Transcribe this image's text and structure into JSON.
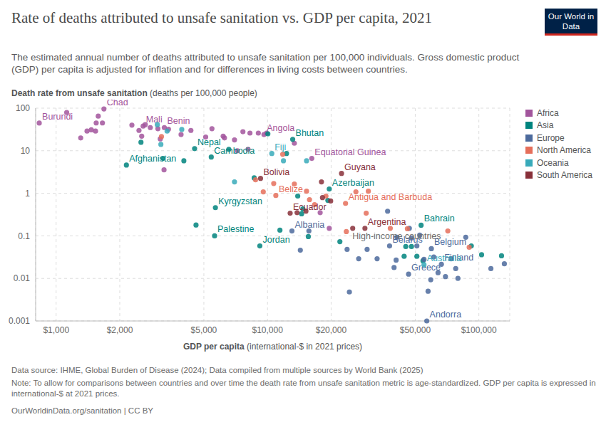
{
  "chart_data": {
    "type": "scatter",
    "title": "Rate of deaths attributed to unsafe sanitation vs. GDP per capita, 2021",
    "subtitle": "The estimated annual number of deaths attributed to unsafe sanitation per 100,000 individuals. Gross domestic product (GDP) per capita is adjusted for inflation and for differences in living costs between countries.",
    "x_label": "GDP per capita (international-$ in 2021 prices)",
    "y_label": "Death rate from unsafe sanitation (deaths per 100,000 people)",
    "log": true,
    "grid": true,
    "legend": "right",
    "xlim": [
      800,
      140000
    ],
    "xticks": [
      {
        "value": 1000,
        "label": "$1,000"
      },
      {
        "value": 2000,
        "label": "$2,000"
      },
      {
        "value": 5000,
        "label": "$5,000"
      },
      {
        "value": 10000,
        "label": "$10,000"
      },
      {
        "value": 20000,
        "label": "$20,000"
      },
      {
        "value": 50000,
        "label": "$50,000"
      },
      {
        "value": 100000,
        "label": "$100,000"
      }
    ],
    "ylim": [
      0.001,
      100
    ],
    "yticks": [
      0.001,
      0.01,
      0.1,
      1,
      10,
      100
    ],
    "series": [
      {
        "name": "Africa",
        "color": "#a2559c",
        "x": [
          832,
          1683,
          2580,
          3250,
          9620,
          16200,
          1122,
          1400,
          1307,
          1467,
          1582,
          1547,
          1656,
          1536,
          2283,
          2466,
          2640,
          2790,
          2540,
          3030,
          3400,
          3110,
          3900,
          4340,
          5100,
          5460,
          6170,
          6260,
          6980,
          7650,
          8260,
          9050,
          9900,
          3240,
          13400,
          7200,
          8090,
          17750,
          19600
        ],
        "values": [
          44.7,
          96,
          38,
          35,
          24,
          6.6,
          79,
          29,
          20,
          31,
          65,
          45,
          45,
          29,
          40,
          30,
          41,
          35,
          22,
          33,
          32,
          19,
          24,
          30,
          21,
          33,
          22,
          20,
          18,
          28,
          26,
          26,
          26,
          3.55,
          15,
          10,
          10.8,
          0.35,
          0.15
        ],
        "labels": [
          "Burundi",
          "Chad",
          "Mali",
          "Benin",
          "Angola",
          "Equatorial Guinea",
          null,
          null,
          null,
          null,
          null,
          null,
          null,
          null,
          null,
          null,
          null,
          null,
          null,
          null,
          null,
          null,
          null,
          null,
          null,
          null,
          null,
          null,
          null,
          null,
          null,
          null,
          null,
          null,
          null,
          null,
          null,
          null,
          null
        ]
      },
      {
        "name": "Asia",
        "color": "#00847e",
        "x": [
          2150,
          4520,
          5420,
          13160,
          5670,
          5620,
          9200,
          19600,
          53300,
          2520,
          3200,
          4020,
          8650,
          10040,
          6560,
          12300,
          4590,
          11450,
          13900,
          19300,
          15600,
          22000,
          45100,
          48000,
          44300,
          50900,
          54400,
          92100,
          103000,
          128000,
          14500,
          14700
        ],
        "values": [
          4.6,
          11.2,
          7.1,
          18.5,
          0.46,
          0.1,
          0.058,
          1.26,
          0.178,
          15.8,
          6.6,
          5.8,
          2.3,
          25,
          10.8,
          8.6,
          0.18,
          0.136,
          0.86,
          0.68,
          0.096,
          0.073,
          0.056,
          0.056,
          0.033,
          0.033,
          0.026,
          0.058,
          0.036,
          0.034,
          0.33,
          0.43
        ],
        "labels": [
          "Afghanistan",
          "Nepal",
          "Cambodia",
          "Bhutan",
          "Kyrgyzstan",
          "Palestine",
          "Jordan",
          "Azerbaijan",
          "Bahrain",
          null,
          null,
          null,
          null,
          null,
          null,
          null,
          null,
          null,
          null,
          null,
          null,
          null,
          null,
          null,
          null,
          null,
          null,
          null,
          null,
          null,
          null,
          null
        ]
      },
      {
        "name": "Europe",
        "color": "#4c6a9c",
        "x": [
          56700,
          13050,
          37800,
          46500,
          66500,
          59600,
          14300,
          15700,
          23800,
          24400,
          27000,
          29600,
          33000,
          37000,
          39700,
          40600,
          41000,
          46900,
          48000,
          50900,
          52500,
          55000,
          57500,
          61200,
          64100,
          69500,
          73900,
          77700,
          79600,
          86700,
          59200,
          114000,
          132000
        ],
        "values": [
          0.001,
          0.13,
          0.058,
          0.0126,
          0.0215,
          0.05,
          0.046,
          0.13,
          0.048,
          0.0048,
          0.029,
          0.048,
          0.029,
          0.38,
          0.018,
          0.027,
          0.093,
          0.15,
          0.089,
          0.058,
          0.104,
          0.028,
          0.005,
          0.032,
          0.0136,
          0.011,
          0.029,
          0.017,
          0.01,
          0.093,
          0.0093,
          0.017,
          0.022
        ],
        "labels": [
          "Andorra",
          "Albania",
          "Belarus",
          "Greece",
          "Finland",
          "Belgium",
          null,
          null,
          null,
          null,
          null,
          null,
          null,
          null,
          null,
          null,
          null,
          null,
          null,
          null,
          null,
          null,
          null,
          null,
          null,
          null,
          null,
          null,
          null,
          null,
          null,
          null,
          null
        ]
      },
      {
        "name": "North America",
        "color": "#e56e5a",
        "x": [
          10950,
          23400,
          3150,
          8780,
          9550,
          10700,
          13400,
          15300,
          15800,
          18900,
          16700,
          23600,
          26200,
          30000,
          29300,
          38100,
          45900,
          71300,
          90000,
          11800
        ],
        "values": [
          0.89,
          0.58,
          21.5,
          2.07,
          1.08,
          1.7,
          1.65,
          1.12,
          0.71,
          0.86,
          0.54,
          0.126,
          1.08,
          1.12,
          0.34,
          0.15,
          0.147,
          0.13,
          0.054,
          8.25
        ],
        "labels": [
          "Belize",
          "Antigua and Barbuda",
          null,
          null,
          null,
          null,
          null,
          null,
          null,
          null,
          null,
          null,
          null,
          null,
          null,
          null,
          null,
          null,
          null,
          null
        ]
      },
      {
        "name": "Oceania",
        "color": "#38aaba",
        "x": [
          10480,
          55000,
          3010,
          3350,
          3930,
          3130,
          6980,
          11900,
          15300
        ],
        "values": [
          8.6,
          0.021,
          41,
          29,
          31.6,
          14.1,
          1.85,
          5.8,
          5.8
        ],
        "labels": [
          "Fiji",
          "Australia",
          null,
          null,
          null,
          null,
          null,
          null,
          null
        ]
      },
      {
        "name": "South America",
        "color": "#883039",
        "x": [
          9270,
          22400,
          12800,
          28900,
          18000,
          18200,
          13800,
          15200,
          19900,
          25300
        ],
        "values": [
          2.24,
          2.93,
          0.34,
          0.15,
          1.85,
          0.79,
          0.35,
          0.38,
          0.66,
          0.15
        ],
        "labels": [
          "Bolivia",
          "Guyana",
          "Ecuador",
          "Argentina",
          null,
          null,
          null,
          null,
          null,
          null
        ]
      }
    ],
    "annotations": [
      {
        "text": "High-income countries",
        "x": 25200,
        "y": 0.0825,
        "color": "#6d6d6d"
      }
    ],
    "source": "Data source: IHME, Global Burden of Disease (2024); Data compiled from multiple sources by World Bank (2025)",
    "note": "Note: To allow for comparisons between countries and over time the death rate from unsafe sanitation metric is age-standardized. GDP per capita is expressed in international-$ at 2021 prices.",
    "footer": "OurWorldinData.org/sanitation | CC BY",
    "logo": "Our World in Data"
  }
}
